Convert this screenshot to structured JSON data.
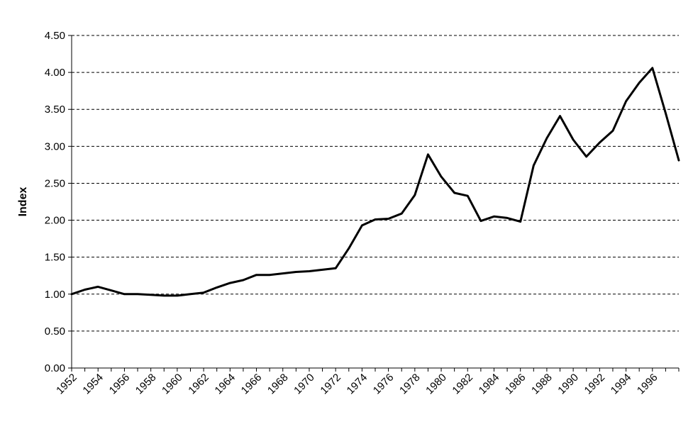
{
  "chart_data": {
    "type": "line",
    "title": "",
    "xlabel": "",
    "ylabel": "Index",
    "ylim": [
      0,
      4.5
    ],
    "y_ticks": [
      "0.00",
      "0.50",
      "1.00",
      "1.50",
      "2.00",
      "2.50",
      "3.00",
      "3.50",
      "4.00",
      "4.50"
    ],
    "x_tick_labels": [
      "1952",
      "1954",
      "1956",
      "1958",
      "1960",
      "1962",
      "1964",
      "1966",
      "1968",
      "1970",
      "1972",
      "1974",
      "1976",
      "1978",
      "1980",
      "1982",
      "1984",
      "1986",
      "1988",
      "1990",
      "1992",
      "1994",
      "1996"
    ],
    "grid": true,
    "legend": "none",
    "line_color": "#000000",
    "x": [
      1952,
      1953,
      1954,
      1955,
      1956,
      1957,
      1958,
      1959,
      1960,
      1961,
      1962,
      1963,
      1964,
      1965,
      1966,
      1967,
      1968,
      1969,
      1970,
      1971,
      1972,
      1973,
      1974,
      1975,
      1976,
      1977,
      1978,
      1979,
      1980,
      1981,
      1982,
      1983,
      1984,
      1985,
      1986,
      1987,
      1988,
      1989,
      1990,
      1991,
      1992,
      1993,
      1994,
      1995,
      1996,
      1997,
      1998
    ],
    "series": [
      {
        "values": [
          1.0,
          1.06,
          1.1,
          1.05,
          1.0,
          1.0,
          0.99,
          0.98,
          0.98,
          1.0,
          1.02,
          1.09,
          1.15,
          1.19,
          1.26,
          1.26,
          1.28,
          1.3,
          1.31,
          1.33,
          1.35,
          1.62,
          1.93,
          2.01,
          2.02,
          2.09,
          2.34,
          2.89,
          2.59,
          2.37,
          2.33,
          1.99,
          2.05,
          2.03,
          1.98,
          2.74,
          3.11,
          3.41,
          3.09,
          2.86,
          3.05,
          3.21,
          3.61,
          3.86,
          4.06,
          3.45,
          2.81
        ]
      }
    ]
  }
}
